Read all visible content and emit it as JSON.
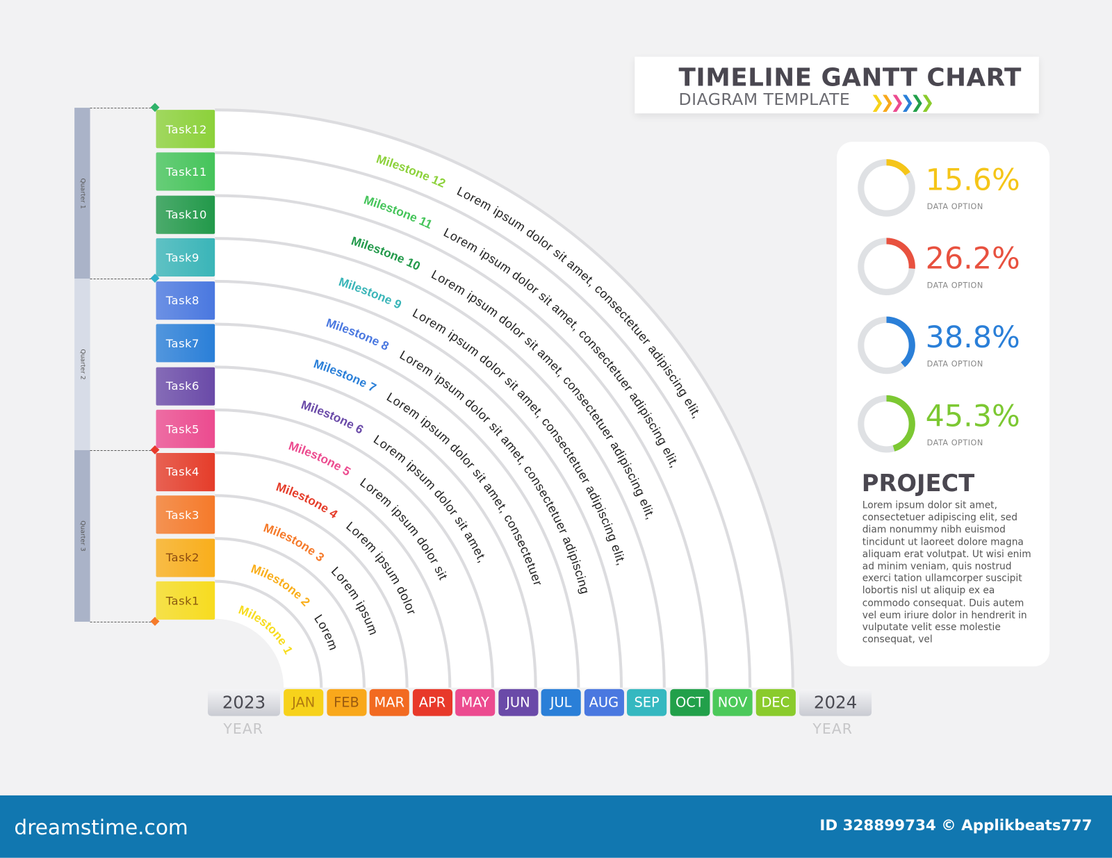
{
  "header": {
    "title": "TIMELINE GANTT CHART",
    "subtitle": "DIAGRAM TEMPLATE",
    "chevron_colors": [
      "#f7d21b",
      "#f7a81b",
      "#ec4b8f",
      "#2a7fd8",
      "#22a04a",
      "#8acb2c"
    ]
  },
  "quarters": [
    {
      "label": "Quarter 1",
      "color": "#aab3c8"
    },
    {
      "label": "Quarter 2",
      "color": "#d7dce7"
    },
    {
      "label": "Quarter 3",
      "color": "#aab3c8"
    }
  ],
  "marker_colors": [
    "#2fb36a",
    "#2fb0c8",
    "#e8392a",
    "#f57a2a"
  ],
  "tasks": [
    {
      "label": "Task1",
      "color": "#f7dc1f",
      "text_color": "#8a5a10",
      "milestone": "Milestone 1",
      "text": ""
    },
    {
      "label": "Task2",
      "color": "#f9ae1b",
      "text_color": "#8a4a10",
      "milestone": "Milestone 2",
      "text": "Lorem"
    },
    {
      "label": "Task3",
      "color": "#f57a2a",
      "text_color": "#ffffff",
      "milestone": "Milestone 3",
      "text": "Lorem ipsum"
    },
    {
      "label": "Task4",
      "color": "#e53d2a",
      "text_color": "#ffffff",
      "milestone": "Milestone 4",
      "text": "Lorem ipsum dolor"
    },
    {
      "label": "Task5",
      "color": "#ec4b8f",
      "text_color": "#ffffff",
      "milestone": "Milestone 5",
      "text": "Lorem ipsum dolor sit"
    },
    {
      "label": "Task6",
      "color": "#6a4aa8",
      "text_color": "#ffffff",
      "milestone": "Milestone 6",
      "text": "Lorem ipsum dolor sit amet,"
    },
    {
      "label": "Task7",
      "color": "#2a7fd8",
      "text_color": "#ffffff",
      "milestone": "Milestone 7",
      "text": "Lorem ipsum dolor sit amet, consectetuer"
    },
    {
      "label": "Task8",
      "color": "#4a78e0",
      "text_color": "#ffffff",
      "milestone": "Milestone 8",
      "text": "Lorem ipsum dolor sit amet, consectetuer adipiscing"
    },
    {
      "label": "Task9",
      "color": "#3ab5b8",
      "text_color": "#ffffff",
      "milestone": "Milestone 9",
      "text": "Lorem ipsum dolor sit amet, consectetuer adipiscing elit,"
    },
    {
      "label": "Task10",
      "color": "#22994a",
      "text_color": "#ffffff",
      "milestone": "Milestone 10",
      "text": "Lorem ipsum dolor sit amet, consectetuer adipiscing elit,"
    },
    {
      "label": "Task11",
      "color": "#45c45a",
      "text_color": "#ffffff",
      "milestone": "Milestone 11",
      "text": "Lorem ipsum dolor sit amet, consectetuer adipiscing elit,"
    },
    {
      "label": "Task12",
      "color": "#8cd13a",
      "text_color": "#ffffff",
      "milestone": "Milestone 12",
      "text": "Lorem ipsum dolor sit amet, consectetuer adipiscing elit,"
    }
  ],
  "timeline": {
    "start_year": "2023",
    "end_year": "2024",
    "year_label": "YEAR",
    "months": [
      {
        "label": "JAN",
        "color": "#f7d21b",
        "text_color": "#b07a10"
      },
      {
        "label": "FEB",
        "color": "#f9a81b",
        "text_color": "#9a5a10"
      },
      {
        "label": "MAR",
        "color": "#f26a21",
        "text_color": "#ffffff"
      },
      {
        "label": "APR",
        "color": "#e8392a",
        "text_color": "#ffffff"
      },
      {
        "label": "MAY",
        "color": "#ec4b8f",
        "text_color": "#ffffff"
      },
      {
        "label": "JUN",
        "color": "#6a4aa8",
        "text_color": "#ffffff"
      },
      {
        "label": "JUL",
        "color": "#2a7fd8",
        "text_color": "#ffffff"
      },
      {
        "label": "AUG",
        "color": "#4a78e0",
        "text_color": "#ffffff"
      },
      {
        "label": "SEP",
        "color": "#35b8c0",
        "text_color": "#ffffff"
      },
      {
        "label": "OCT",
        "color": "#22a04a",
        "text_color": "#ffffff"
      },
      {
        "label": "NOV",
        "color": "#4cc95a",
        "text_color": "#ffffff"
      },
      {
        "label": "DEC",
        "color": "#8acb2c",
        "text_color": "#ffffff"
      }
    ]
  },
  "donuts": [
    {
      "value_text": "15.6%",
      "value": 15.6,
      "label": "DATA OPTION",
      "color": "#f5c518"
    },
    {
      "value_text": "26.2%",
      "value": 26.2,
      "label": "DATA OPTION",
      "color": "#e8513f"
    },
    {
      "value_text": "38.8%",
      "value": 38.8,
      "label": "DATA OPTION",
      "color": "#2a7fd8"
    },
    {
      "value_text": "45.3%",
      "value": 45.3,
      "label": "DATA OPTION",
      "color": "#7cc832"
    }
  ],
  "project": {
    "title": "PROJECT",
    "body": "Lorem ipsum dolor sit amet, consectetuer adipiscing elit, sed diam nonummy nibh euismod tincidunt ut laoreet dolore magna aliquam erat volutpat. Ut wisi enim ad minim veniam, quis nostrud exerci tation ullamcorper suscipit lobortis nisl ut aliquip ex ea commodo consequat. Duis autem vel eum iriure dolor in hendrerit in vulputate velit esse molestie consequat, vel"
  },
  "footer": {
    "logo": "dreamstime.com",
    "credit": "ID 328899734 © Applikbeats777",
    "color": "#1177b0"
  }
}
